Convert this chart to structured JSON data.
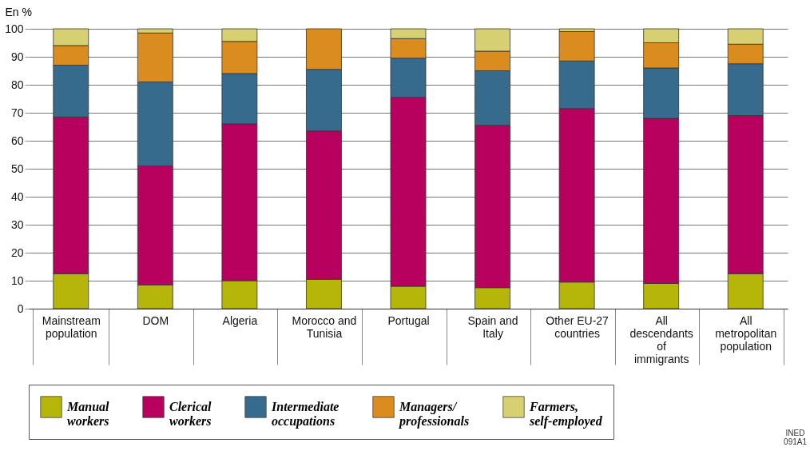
{
  "chart_data": {
    "type": "bar",
    "stacked": true,
    "ylabel": "En %",
    "categories": [
      "Mainstream population",
      "DOM",
      "Algeria",
      "Morocco and Tunisia",
      "Portugal",
      "Spain and Italy",
      "Other EU-27 countries",
      "All descendants of immigrants",
      "All metropolitan population"
    ],
    "series": [
      {
        "name": "Manual workers",
        "color": "#b5b50a",
        "values": [
          12.5,
          8.5,
          10,
          10.5,
          8,
          7.5,
          9.5,
          9,
          12.5
        ]
      },
      {
        "name": "Clerical workers",
        "color": "#b8005e",
        "values": [
          56,
          42.5,
          56,
          53,
          67.5,
          58,
          62,
          59,
          56.5
        ]
      },
      {
        "name": "Intermediate occupations",
        "color": "#376b8e",
        "values": [
          18.5,
          30,
          18,
          22,
          14,
          19.5,
          17,
          18,
          18.5
        ]
      },
      {
        "name": "Managers/ professionals",
        "color": "#db8c1e",
        "values": [
          7,
          17.5,
          11.5,
          14.5,
          7,
          7,
          10.5,
          9,
          7
        ]
      },
      {
        "name": "Farmers, self-employed",
        "color": "#d6d072",
        "values": [
          6,
          1.5,
          4.5,
          0,
          3.5,
          8,
          1,
          5,
          5.5
        ]
      }
    ],
    "ylim": [
      0,
      100
    ],
    "yticks": [
      0,
      10,
      20,
      30,
      40,
      50,
      60,
      70,
      80,
      90,
      100
    ],
    "grid": "y",
    "legend": "bottom",
    "annotations": [
      "INED 091A1"
    ]
  }
}
